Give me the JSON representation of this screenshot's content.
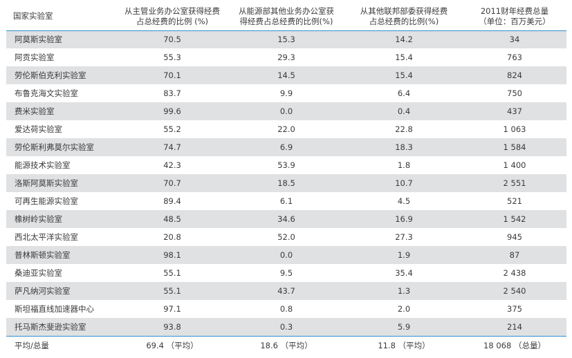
{
  "table": {
    "headers": [
      [
        "国家实验室"
      ],
      [
        "从主管业务办公室获得经费",
        "占总经费的比例 (%)"
      ],
      [
        "从能源部其他业务办公室获",
        "得经费占总经费的比例(%)"
      ],
      [
        "从其他联邦部委获得经费",
        "占总经费的比例(%)"
      ],
      [
        "2011财年经费总量",
        "（单位：百万美元）"
      ]
    ],
    "rows": [
      [
        "阿莫斯实验室",
        "70.5",
        "15.3",
        "14.2",
        "34"
      ],
      [
        "阿贡实验室",
        "55.3",
        "29.3",
        "15.4",
        "763"
      ],
      [
        "劳伦斯伯克利实验室",
        "70.1",
        "14.5",
        "15.4",
        "824"
      ],
      [
        "布鲁克海文实验室",
        "83.7",
        "9.9",
        "6.4",
        "750"
      ],
      [
        "费米实验室",
        "99.6",
        "0.0",
        "0.4",
        "437"
      ],
      [
        "爱达荷实验室",
        "55.2",
        "22.0",
        "22.8",
        "1 063"
      ],
      [
        "劳伦斯利弗莫尔实验室",
        "74.7",
        "6.9",
        "18.3",
        "1 584"
      ],
      [
        "能源技术实验室",
        "42.3",
        "53.9",
        "1.8",
        "1 400"
      ],
      [
        "洛斯阿莫斯实验室",
        "70.7",
        "18.5",
        "10.7",
        "2 551"
      ],
      [
        "可再生能源实验室",
        "89.4",
        "6.1",
        "4.5",
        "521"
      ],
      [
        "橡树岭实验室",
        "48.5",
        "34.6",
        "16.9",
        "1 542"
      ],
      [
        "西北太平洋实验室",
        "20.8",
        "52.0",
        "27.3",
        "945"
      ],
      [
        "普林斯顿实验室",
        "98.1",
        "0.0",
        "1.9",
        "87"
      ],
      [
        "桑迪亚实验室",
        "55.1",
        "9.5",
        "35.4",
        "2 438"
      ],
      [
        "萨凡纳河实验室",
        "55.1",
        "43.7",
        "1.3",
        "2 540"
      ],
      [
        "斯坦福直线加速器中心",
        "97.1",
        "0.8",
        "2.0",
        "375"
      ],
      [
        "托马斯杰斐逊实验室",
        "93.8",
        "0.3",
        "5.9",
        "214"
      ]
    ],
    "footer": [
      "平均/总量",
      "69.4 （平均）",
      "18.6 （平均）",
      "11.8 （平均）",
      "18 068 （总量）"
    ]
  },
  "colors": {
    "rule": "#2f8fd0",
    "stripe": "#dfe1e3",
    "text": "#3a3a3a"
  }
}
